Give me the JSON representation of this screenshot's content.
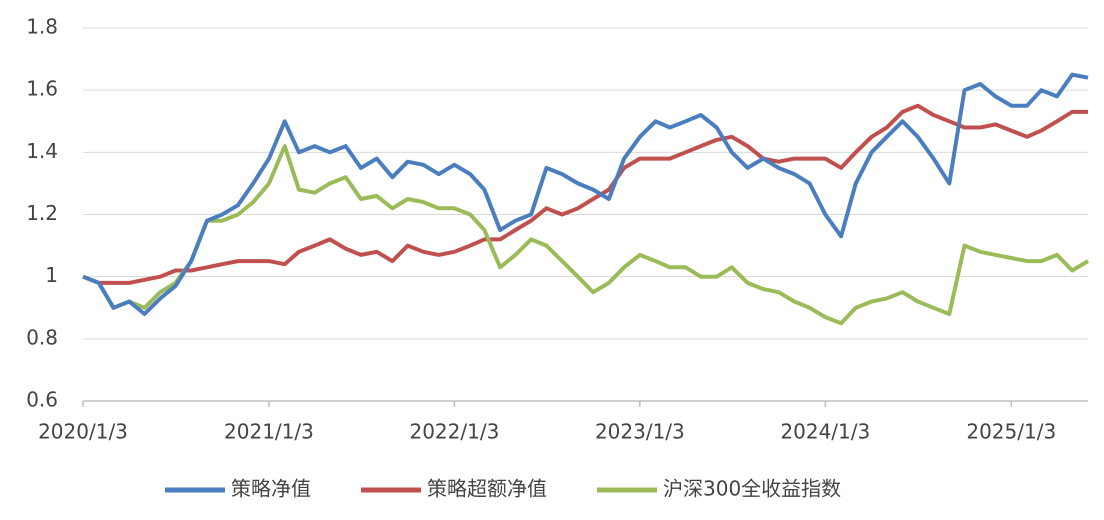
{
  "chart_data": {
    "type": "line",
    "x": [
      "2020/1/3",
      "2020/2/3",
      "2020/3/3",
      "2020/4/3",
      "2020/5/3",
      "2020/6/3",
      "2020/7/3",
      "2020/8/3",
      "2020/9/3",
      "2020/10/3",
      "2020/11/3",
      "2020/12/3",
      "2021/1/3",
      "2021/2/3",
      "2021/3/3",
      "2021/4/3",
      "2021/5/3",
      "2021/6/3",
      "2021/7/3",
      "2021/8/3",
      "2021/9/3",
      "2021/10/3",
      "2021/11/3",
      "2021/12/3",
      "2022/1/3",
      "2022/2/3",
      "2022/3/3",
      "2022/4/3",
      "2022/5/3",
      "2022/6/3",
      "2022/7/3",
      "2022/8/3",
      "2022/9/3",
      "2022/10/3",
      "2022/11/3",
      "2022/12/3",
      "2023/1/3",
      "2023/2/3",
      "2023/3/3",
      "2023/4/3",
      "2023/5/3",
      "2023/6/3",
      "2023/7/3",
      "2023/8/3",
      "2023/9/3",
      "2023/10/3",
      "2023/11/3",
      "2023/12/3",
      "2024/1/3",
      "2024/2/3",
      "2024/3/3",
      "2024/4/3",
      "2024/5/3",
      "2024/6/3",
      "2024/7/3",
      "2024/8/3",
      "2024/9/3",
      "2024/10/3",
      "2024/11/3",
      "2024/12/3",
      "2025/1/3",
      "2025/2/3",
      "2025/3/3",
      "2025/4/3",
      "2025/5/3",
      "2025/6/3"
    ],
    "series": [
      {
        "name": "策略净值",
        "color": "#4a7ebf",
        "values": [
          1.0,
          0.98,
          0.9,
          0.92,
          0.88,
          0.93,
          0.97,
          1.05,
          1.18,
          1.2,
          1.23,
          1.3,
          1.38,
          1.5,
          1.4,
          1.42,
          1.4,
          1.42,
          1.35,
          1.38,
          1.32,
          1.37,
          1.36,
          1.33,
          1.36,
          1.33,
          1.28,
          1.15,
          1.18,
          1.2,
          1.35,
          1.33,
          1.3,
          1.28,
          1.25,
          1.38,
          1.45,
          1.5,
          1.48,
          1.5,
          1.52,
          1.48,
          1.4,
          1.35,
          1.38,
          1.35,
          1.33,
          1.3,
          1.2,
          1.13,
          1.3,
          1.4,
          1.45,
          1.5,
          1.45,
          1.38,
          1.3,
          1.6,
          1.62,
          1.58,
          1.55,
          1.55,
          1.6,
          1.58,
          1.65,
          1.64
        ]
      },
      {
        "name": "策略超额净值",
        "color": "#c0504d",
        "values": [
          1.0,
          0.98,
          0.98,
          0.98,
          0.99,
          1.0,
          1.02,
          1.02,
          1.03,
          1.04,
          1.05,
          1.05,
          1.05,
          1.04,
          1.08,
          1.1,
          1.12,
          1.09,
          1.07,
          1.08,
          1.05,
          1.1,
          1.08,
          1.07,
          1.08,
          1.1,
          1.12,
          1.12,
          1.15,
          1.18,
          1.22,
          1.2,
          1.22,
          1.25,
          1.28,
          1.35,
          1.38,
          1.38,
          1.38,
          1.4,
          1.42,
          1.44,
          1.45,
          1.42,
          1.38,
          1.37,
          1.38,
          1.38,
          1.38,
          1.35,
          1.4,
          1.45,
          1.48,
          1.53,
          1.55,
          1.52,
          1.5,
          1.48,
          1.48,
          1.49,
          1.47,
          1.45,
          1.47,
          1.5,
          1.53,
          1.53
        ]
      },
      {
        "name": "沪深300全收益指数",
        "color": "#9bbb59",
        "values": [
          1.0,
          0.98,
          0.9,
          0.92,
          0.9,
          0.95,
          0.98,
          1.05,
          1.18,
          1.18,
          1.2,
          1.24,
          1.3,
          1.42,
          1.28,
          1.27,
          1.3,
          1.32,
          1.25,
          1.26,
          1.22,
          1.25,
          1.24,
          1.22,
          1.22,
          1.2,
          1.15,
          1.03,
          1.07,
          1.12,
          1.1,
          1.05,
          1.0,
          0.95,
          0.98,
          1.03,
          1.07,
          1.05,
          1.03,
          1.03,
          1.0,
          1.0,
          1.03,
          0.98,
          0.96,
          0.95,
          0.92,
          0.9,
          0.87,
          0.85,
          0.9,
          0.92,
          0.93,
          0.95,
          0.92,
          0.9,
          0.88,
          1.1,
          1.08,
          1.07,
          1.06,
          1.05,
          1.05,
          1.07,
          1.02,
          1.05
        ]
      }
    ],
    "xlim": [
      "2020/1/3",
      "2025/6/3"
    ],
    "xticks": [
      "2020/1/3",
      "2021/1/3",
      "2022/1/3",
      "2023/1/3",
      "2024/1/3",
      "2025/1/3"
    ],
    "ylim": [
      0.6,
      1.8
    ],
    "yticks": [
      0.6,
      0.8,
      1,
      1.2,
      1.4,
      1.6,
      1.8
    ],
    "grid": true,
    "legend": "bottom"
  }
}
